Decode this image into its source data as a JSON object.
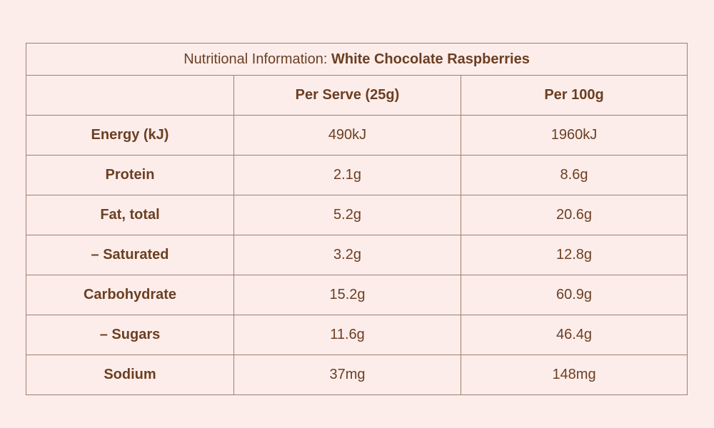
{
  "title": {
    "prefix": "Nutritional Information: ",
    "product": "White Chocolate Raspberries"
  },
  "columns": {
    "label": "",
    "per_serve": "Per Serve (25g)",
    "per_100g": "Per 100g"
  },
  "rows": [
    {
      "label": "Energy (kJ)",
      "per_serve": "490kJ",
      "per_100g": "1960kJ"
    },
    {
      "label": "Protein",
      "per_serve": "2.1g",
      "per_100g": "8.6g"
    },
    {
      "label": "Fat, total",
      "per_serve": "5.2g",
      "per_100g": "20.6g"
    },
    {
      "label": "– Saturated",
      "per_serve": "3.2g",
      "per_100g": "12.8g"
    },
    {
      "label": "Carbohydrate",
      "per_serve": "15.2g",
      "per_100g": "60.9g"
    },
    {
      "label": "– Sugars",
      "per_serve": "11.6g",
      "per_100g": "46.4g"
    },
    {
      "label": "Sodium",
      "per_serve": "37mg",
      "per_100g": "148mg"
    }
  ],
  "colors": {
    "background": "#fcedea",
    "text": "#6b3f22",
    "border": "#a07e70"
  }
}
